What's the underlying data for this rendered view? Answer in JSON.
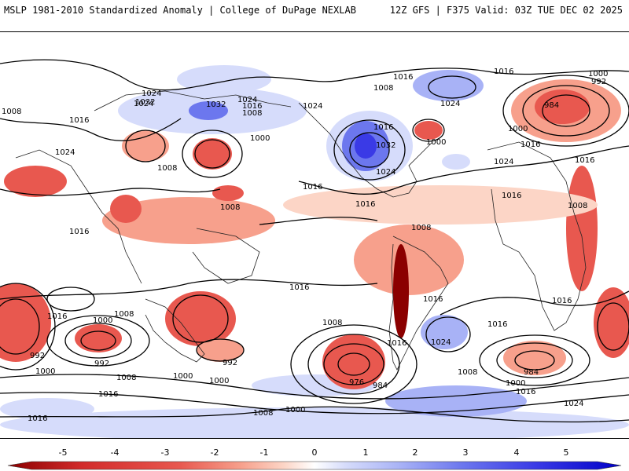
{
  "header": {
    "left_title": "MSLP 1981-2010 Standardized Anomaly | College of DuPage NEXLAB",
    "right_title": "12Z GFS | F375 Valid: 03Z TUE DEC 02 2025"
  },
  "map": {
    "description_type": "global-mslp-anomaly",
    "isobar_labels": [
      "1008",
      "1016",
      "1024",
      "1032",
      "1032",
      "1024",
      "1016",
      "1008",
      "1024",
      "1016",
      "1000",
      "1024",
      "1008",
      "1016",
      "1016",
      "1008",
      "1016",
      "1024",
      "1008",
      "1032",
      "1016",
      "1024",
      "1000",
      "1024",
      "1008",
      "1016",
      "1016",
      "1024",
      "1000",
      "992",
      "984",
      "1000",
      "1016",
      "1016",
      "1008",
      "1016",
      "1016",
      "1016",
      "1016",
      "1000",
      "992",
      "992",
      "1008",
      "1000",
      "1008",
      "992",
      "984",
      "976",
      "1008",
      "1024",
      "1016",
      "1016",
      "984",
      "1000",
      "1016",
      "1024",
      "1000",
      "1008",
      "1016",
      "1000",
      "1000",
      "1008",
      "1016"
    ],
    "colors": {
      "neg5": "#8b0000",
      "neg4": "#d22a2a",
      "neg3": "#e8584f",
      "neg2": "#f7a08c",
      "neg1": "#fcd5c6",
      "pos1": "#d6dcfb",
      "pos2": "#a8b2f6",
      "pos3": "#6c77ee",
      "pos4": "#3a3ae6",
      "pos5": "#0000c8"
    }
  },
  "colorbar": {
    "ticks": [
      "-5",
      "-4",
      "-3",
      "-2",
      "-1",
      "0",
      "1",
      "2",
      "3",
      "4",
      "5"
    ]
  }
}
